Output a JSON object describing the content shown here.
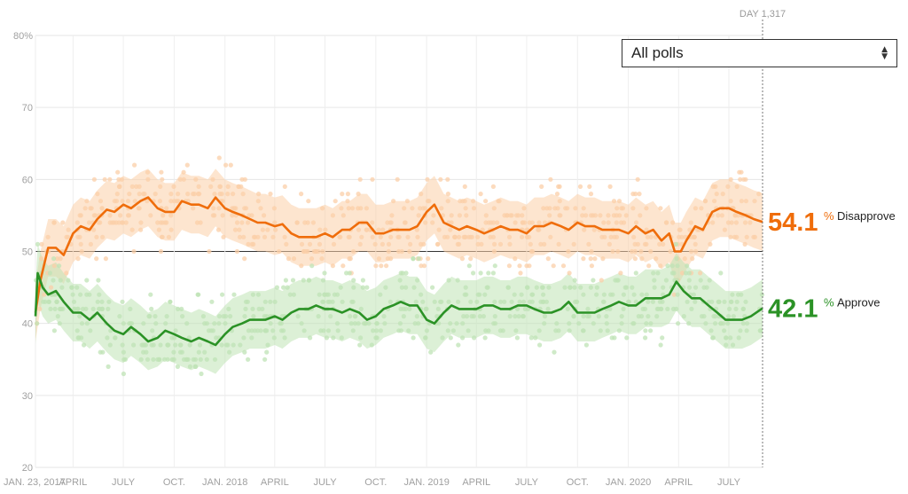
{
  "filter": {
    "selected": "All polls"
  },
  "day_marker": "DAY 1,317",
  "chart_data": {
    "type": "line",
    "title": "",
    "xlabel": "",
    "ylabel": "",
    "ylim": [
      20,
      80
    ],
    "grid": true,
    "y_ticks": [
      "80%",
      "70",
      "60",
      "50",
      "40",
      "30",
      "20"
    ],
    "y_tick_values": [
      80,
      70,
      60,
      50,
      40,
      30,
      20
    ],
    "x_ticks": [
      "JAN. 23, 2017",
      "APRIL",
      "JULY",
      "OCT.",
      "JAN. 2018",
      "APRIL",
      "JULY",
      "OCT.",
      "JAN. 2019",
      "APRIL",
      "JULY",
      "OCT.",
      "JAN. 2020",
      "APRIL",
      "JULY"
    ],
    "x_tick_dates": [
      "2017-01-23",
      "2017-04-01",
      "2017-07-01",
      "2017-10-01",
      "2018-01-01",
      "2018-04-01",
      "2018-07-01",
      "2018-10-01",
      "2019-01-01",
      "2019-04-01",
      "2019-07-01",
      "2019-10-01",
      "2020-01-01",
      "2020-04-01",
      "2020-07-01"
    ],
    "x_start": "2017-01-23",
    "x_end": "2020-08-31",
    "series": [
      {
        "name": "Disapprove",
        "color": "#ef6d0b",
        "band_color": "#fbcfa8",
        "latest_value": "54.1",
        "points": [
          [
            "2017-01-23",
            41.5
          ],
          [
            "2017-02-01",
            46.0
          ],
          [
            "2017-02-15",
            50.5
          ],
          [
            "2017-03-01",
            50.5
          ],
          [
            "2017-03-15",
            49.5
          ],
          [
            "2017-04-01",
            52.5
          ],
          [
            "2017-04-15",
            53.5
          ],
          [
            "2017-05-01",
            53.0
          ],
          [
            "2017-05-15",
            54.5
          ],
          [
            "2017-06-01",
            55.8
          ],
          [
            "2017-06-15",
            55.5
          ],
          [
            "2017-07-01",
            56.5
          ],
          [
            "2017-07-15",
            56.0
          ],
          [
            "2017-08-01",
            57.0
          ],
          [
            "2017-08-15",
            57.5
          ],
          [
            "2017-09-01",
            56.0
          ],
          [
            "2017-09-15",
            55.5
          ],
          [
            "2017-10-01",
            55.5
          ],
          [
            "2017-10-15",
            57.0
          ],
          [
            "2017-11-01",
            56.5
          ],
          [
            "2017-11-15",
            56.5
          ],
          [
            "2017-12-01",
            56.0
          ],
          [
            "2017-12-15",
            57.5
          ],
          [
            "2018-01-01",
            56.0
          ],
          [
            "2018-01-15",
            55.5
          ],
          [
            "2018-02-01",
            55.0
          ],
          [
            "2018-02-15",
            54.5
          ],
          [
            "2018-03-01",
            54.0
          ],
          [
            "2018-03-15",
            54.0
          ],
          [
            "2018-04-01",
            53.5
          ],
          [
            "2018-04-15",
            53.8
          ],
          [
            "2018-05-01",
            52.5
          ],
          [
            "2018-05-15",
            52.0
          ],
          [
            "2018-06-01",
            52.0
          ],
          [
            "2018-06-15",
            52.0
          ],
          [
            "2018-07-01",
            52.5
          ],
          [
            "2018-07-15",
            52.0
          ],
          [
            "2018-08-01",
            53.0
          ],
          [
            "2018-08-15",
            53.0
          ],
          [
            "2018-09-01",
            54.0
          ],
          [
            "2018-09-15",
            54.0
          ],
          [
            "2018-10-01",
            52.5
          ],
          [
            "2018-10-15",
            52.5
          ],
          [
            "2018-11-01",
            53.0
          ],
          [
            "2018-11-15",
            53.0
          ],
          [
            "2018-12-01",
            53.0
          ],
          [
            "2018-12-15",
            53.5
          ],
          [
            "2019-01-01",
            55.5
          ],
          [
            "2019-01-15",
            56.5
          ],
          [
            "2019-02-01",
            54.0
          ],
          [
            "2019-02-15",
            53.5
          ],
          [
            "2019-03-01",
            53.0
          ],
          [
            "2019-03-15",
            53.5
          ],
          [
            "2019-04-01",
            53.0
          ],
          [
            "2019-04-15",
            52.5
          ],
          [
            "2019-05-01",
            53.0
          ],
          [
            "2019-05-15",
            53.5
          ],
          [
            "2019-06-01",
            53.0
          ],
          [
            "2019-06-15",
            53.0
          ],
          [
            "2019-07-01",
            52.5
          ],
          [
            "2019-07-15",
            53.5
          ],
          [
            "2019-08-01",
            53.5
          ],
          [
            "2019-08-15",
            54.0
          ],
          [
            "2019-09-01",
            53.5
          ],
          [
            "2019-09-15",
            53.0
          ],
          [
            "2019-10-01",
            54.0
          ],
          [
            "2019-10-15",
            53.5
          ],
          [
            "2019-11-01",
            53.5
          ],
          [
            "2019-11-15",
            53.0
          ],
          [
            "2019-12-01",
            53.0
          ],
          [
            "2019-12-15",
            53.0
          ],
          [
            "2020-01-01",
            52.5
          ],
          [
            "2020-01-15",
            53.5
          ],
          [
            "2020-02-01",
            52.5
          ],
          [
            "2020-02-15",
            53.0
          ],
          [
            "2020-03-01",
            51.5
          ],
          [
            "2020-03-15",
            52.5
          ],
          [
            "2020-03-25",
            50.0
          ],
          [
            "2020-04-05",
            50.0
          ],
          [
            "2020-04-15",
            51.5
          ],
          [
            "2020-05-01",
            53.5
          ],
          [
            "2020-05-15",
            53.0
          ],
          [
            "2020-06-01",
            55.5
          ],
          [
            "2020-06-15",
            56.0
          ],
          [
            "2020-07-01",
            56.0
          ],
          [
            "2020-07-15",
            55.5
          ],
          [
            "2020-08-01",
            55.0
          ],
          [
            "2020-08-15",
            54.5
          ],
          [
            "2020-08-31",
            54.1
          ]
        ]
      },
      {
        "name": "Approve",
        "color": "#2b9226",
        "band_color": "#bfe3b5",
        "latest_value": "42.1",
        "points": [
          [
            "2017-01-23",
            41.0
          ],
          [
            "2017-01-27",
            47.0
          ],
          [
            "2017-02-05",
            45.0
          ],
          [
            "2017-02-15",
            44.0
          ],
          [
            "2017-03-01",
            44.5
          ],
          [
            "2017-03-15",
            43.0
          ],
          [
            "2017-04-01",
            41.5
          ],
          [
            "2017-04-15",
            41.5
          ],
          [
            "2017-05-01",
            40.5
          ],
          [
            "2017-05-15",
            41.5
          ],
          [
            "2017-06-01",
            40.0
          ],
          [
            "2017-06-15",
            39.0
          ],
          [
            "2017-07-01",
            38.5
          ],
          [
            "2017-07-15",
            39.5
          ],
          [
            "2017-08-01",
            38.5
          ],
          [
            "2017-08-15",
            37.5
          ],
          [
            "2017-09-01",
            38.0
          ],
          [
            "2017-09-15",
            39.0
          ],
          [
            "2017-10-01",
            38.5
          ],
          [
            "2017-10-15",
            38.0
          ],
          [
            "2017-11-01",
            37.5
          ],
          [
            "2017-11-15",
            38.0
          ],
          [
            "2017-12-01",
            37.5
          ],
          [
            "2017-12-15",
            37.0
          ],
          [
            "2018-01-01",
            38.5
          ],
          [
            "2018-01-15",
            39.5
          ],
          [
            "2018-02-01",
            40.0
          ],
          [
            "2018-02-15",
            40.5
          ],
          [
            "2018-03-01",
            40.5
          ],
          [
            "2018-03-15",
            40.5
          ],
          [
            "2018-04-01",
            41.0
          ],
          [
            "2018-04-15",
            40.5
          ],
          [
            "2018-05-01",
            41.5
          ],
          [
            "2018-05-15",
            42.0
          ],
          [
            "2018-06-01",
            42.0
          ],
          [
            "2018-06-15",
            42.5
          ],
          [
            "2018-07-01",
            42.0
          ],
          [
            "2018-07-15",
            42.0
          ],
          [
            "2018-08-01",
            41.5
          ],
          [
            "2018-08-15",
            42.0
          ],
          [
            "2018-09-01",
            41.5
          ],
          [
            "2018-09-15",
            40.5
          ],
          [
            "2018-10-01",
            41.0
          ],
          [
            "2018-10-15",
            42.0
          ],
          [
            "2018-11-01",
            42.5
          ],
          [
            "2018-11-15",
            43.0
          ],
          [
            "2018-12-01",
            42.5
          ],
          [
            "2018-12-15",
            42.5
          ],
          [
            "2019-01-01",
            40.5
          ],
          [
            "2019-01-15",
            40.0
          ],
          [
            "2019-02-01",
            41.5
          ],
          [
            "2019-02-15",
            42.5
          ],
          [
            "2019-03-01",
            42.0
          ],
          [
            "2019-03-15",
            42.0
          ],
          [
            "2019-04-01",
            42.0
          ],
          [
            "2019-04-15",
            42.5
          ],
          [
            "2019-05-01",
            42.5
          ],
          [
            "2019-05-15",
            42.0
          ],
          [
            "2019-06-01",
            42.0
          ],
          [
            "2019-06-15",
            42.5
          ],
          [
            "2019-07-01",
            42.5
          ],
          [
            "2019-07-15",
            42.0
          ],
          [
            "2019-08-01",
            41.5
          ],
          [
            "2019-08-15",
            41.5
          ],
          [
            "2019-09-01",
            42.0
          ],
          [
            "2019-09-15",
            43.0
          ],
          [
            "2019-10-01",
            41.5
          ],
          [
            "2019-10-15",
            41.5
          ],
          [
            "2019-11-01",
            41.5
          ],
          [
            "2019-11-15",
            42.0
          ],
          [
            "2019-12-01",
            42.5
          ],
          [
            "2019-12-15",
            43.0
          ],
          [
            "2020-01-01",
            42.5
          ],
          [
            "2020-01-15",
            42.5
          ],
          [
            "2020-02-01",
            43.5
          ],
          [
            "2020-02-15",
            43.5
          ],
          [
            "2020-03-01",
            43.5
          ],
          [
            "2020-03-15",
            44.0
          ],
          [
            "2020-03-28",
            45.8
          ],
          [
            "2020-04-10",
            44.5
          ],
          [
            "2020-04-25",
            43.5
          ],
          [
            "2020-05-10",
            43.5
          ],
          [
            "2020-05-25",
            42.5
          ],
          [
            "2020-06-10",
            41.5
          ],
          [
            "2020-06-25",
            40.5
          ],
          [
            "2020-07-10",
            40.5
          ],
          [
            "2020-07-25",
            40.5
          ],
          [
            "2020-08-10",
            41.0
          ],
          [
            "2020-08-31",
            42.1
          ]
        ]
      }
    ]
  }
}
